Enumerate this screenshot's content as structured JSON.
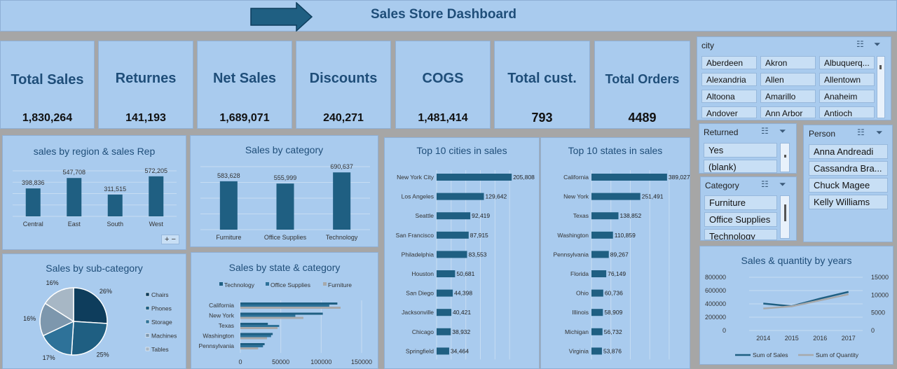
{
  "header": {
    "title": "Sales Store Dashboard"
  },
  "kpis": [
    {
      "label": "Total Sales",
      "value": "1,830,264"
    },
    {
      "label": "Returnes",
      "value": "141,193"
    },
    {
      "label": "Net Sales",
      "value": "1,689,071"
    },
    {
      "label": "Discounts",
      "value": "240,271"
    },
    {
      "label": "COGS",
      "value": "1,481,414"
    },
    {
      "label": "Total cust.",
      "value": "793"
    },
    {
      "label": "Total Orders",
      "value": "4489"
    }
  ],
  "slicers": {
    "city": {
      "title": "city",
      "items": [
        "Aberdeen",
        "Akron",
        "Albuquerq...",
        "Alexandria",
        "Allen",
        "Allentown",
        "Altoona",
        "Amarillo",
        "Anaheim",
        "Andover",
        "Ann Arbor",
        "Antioch"
      ]
    },
    "returned": {
      "title": "Returned",
      "items": [
        "Yes",
        "(blank)"
      ]
    },
    "category": {
      "title": "Category",
      "items": [
        "Furniture",
        "Office Supplies",
        "Technology"
      ]
    },
    "person": {
      "title": "Person",
      "items": [
        "Anna Andreadi",
        "Cassandra Bra...",
        "Chuck Magee",
        "Kelly Williams"
      ]
    }
  },
  "icons": {
    "multiselect": "multi-select-icon",
    "filter": "filter-clear-icon",
    "arrow": "arrow-right-icon"
  },
  "controls": {
    "expand": "+",
    "collapse": "−"
  },
  "colors": {
    "bar": "#1f5f82",
    "grey": "#a7a9ab",
    "panel": "#a9cbee"
  },
  "chart_data": [
    {
      "id": "region",
      "type": "bar",
      "title": "sales by region & sales Rep",
      "categories": [
        "Central",
        "East",
        "South",
        "West"
      ],
      "values": [
        398836,
        547708,
        311515,
        572205
      ],
      "labels": [
        "398,836",
        "547,708",
        "311,515",
        "572,205"
      ],
      "ylim": [
        0,
        650000
      ]
    },
    {
      "id": "category",
      "type": "bar",
      "title": "Sales by category",
      "categories": [
        "Furniture",
        "Office Supplies",
        "Technology"
      ],
      "values": [
        583628,
        555999,
        690637
      ],
      "labels": [
        "583,628",
        "555,999",
        "690,637"
      ],
      "ylim": [
        0,
        760000
      ]
    },
    {
      "id": "cities",
      "type": "bar",
      "title": "Top 10 cities in sales",
      "categories": [
        "New York City",
        "Los Angeles",
        "Seattle",
        "San Francisco",
        "Philadelphia",
        "Houston",
        "San Diego",
        "Jacksonville",
        "Chicago",
        "Springfield"
      ],
      "values": [
        205808,
        129642,
        92419,
        87915,
        83553,
        50681,
        44398,
        40421,
        38932,
        34464
      ],
      "labels": [
        "205,808",
        "129,642",
        "92,419",
        "87,915",
        "83,553",
        "50,681",
        "44,398",
        "40,421",
        "38,932",
        "34,464"
      ],
      "xlim": [
        0,
        240000
      ]
    },
    {
      "id": "states",
      "type": "bar",
      "title": "Top 10 states in sales",
      "categories": [
        "California",
        "New York",
        "Texas",
        "Washington",
        "Pennsylvania",
        "Florida",
        "Ohio",
        "Illinois",
        "Michigan",
        "Virginia"
      ],
      "values": [
        389027,
        251491,
        138852,
        110859,
        89267,
        76149,
        60736,
        58909,
        56732,
        53876
      ],
      "labels": [
        "389,027",
        "251,491",
        "138,852",
        "110,859",
        "89,267",
        "76,149",
        "60,736",
        "58,909",
        "56,732",
        "53,876"
      ],
      "xlim": [
        0,
        440000
      ]
    },
    {
      "id": "subcat",
      "type": "pie",
      "title": "Sales by sub-category",
      "categories": [
        "Chairs",
        "Phones",
        "Storage",
        "Machines",
        "Tables"
      ],
      "values": [
        26,
        25,
        17,
        16,
        16
      ],
      "labels": [
        "26%",
        "25%",
        "17%",
        "16%",
        "16%"
      ],
      "colors": [
        "#0e3d5c",
        "#1f5f82",
        "#2e7299",
        "#7d97ad",
        "#a7b7c5"
      ]
    },
    {
      "id": "statecat",
      "type": "bar",
      "title": "Sales by state & category",
      "categories": [
        "California",
        "New York",
        "Texas",
        "Washington",
        "Pennsylvania"
      ],
      "series": [
        {
          "name": "Technology",
          "values": [
            120000,
            102000,
            34000,
            40000,
            30000
          ]
        },
        {
          "name": "Office Supplies",
          "values": [
            110000,
            68000,
            48000,
            38000,
            28000
          ]
        },
        {
          "name": "Furniture",
          "values": [
            124000,
            78000,
            46000,
            33000,
            22000
          ]
        }
      ],
      "xticks": [
        "0",
        "50000",
        "100000",
        "150000"
      ],
      "xlim": [
        0,
        150000
      ]
    },
    {
      "id": "years",
      "type": "line",
      "title": "Sales & quantity by years",
      "x": [
        "2014",
        "2015",
        "2016",
        "2017"
      ],
      "series": [
        {
          "name": "Sum of Sales",
          "values": [
            405000,
            365000,
            480000,
            580000
          ]
        },
        {
          "name": "Sum of Quantity",
          "values": [
            6200,
            6800,
            8500,
            10200
          ]
        }
      ],
      "yticks_left": [
        "800000",
        "600000",
        "400000",
        "200000",
        "0"
      ],
      "yticks_right": [
        "15000",
        "10000",
        "5000",
        "0"
      ],
      "ylim_left": [
        0,
        800000
      ],
      "ylim_right": [
        0,
        15000
      ]
    }
  ]
}
